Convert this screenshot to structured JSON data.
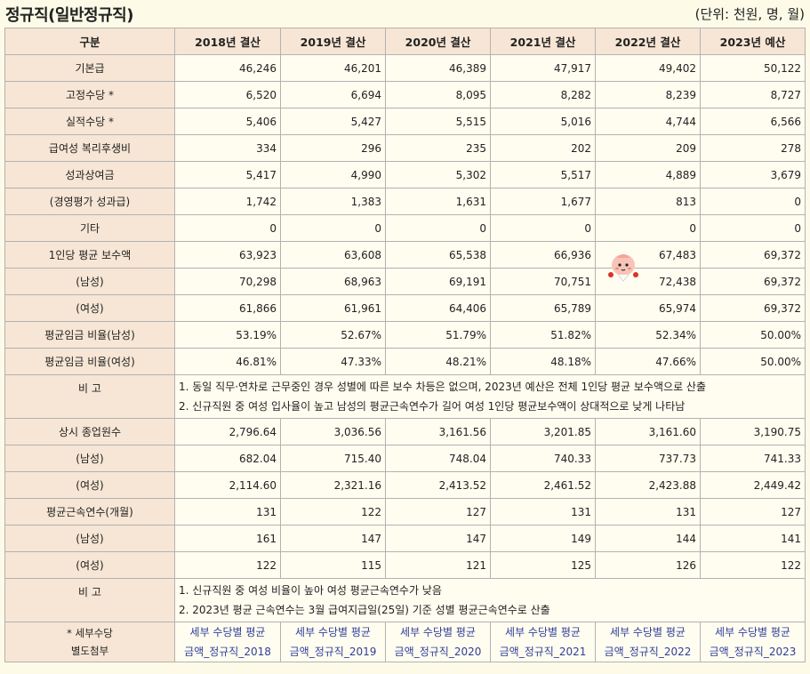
{
  "header": {
    "title": "정규직(일반정규직)",
    "unit": "(단위: 천원, 명, 월)"
  },
  "table": {
    "columns": [
      "구분",
      "2018년 결산",
      "2019년 결산",
      "2020년 결산",
      "2021년 결산",
      "2022년 결산",
      "2023년 예산"
    ],
    "section1": [
      {
        "label": "기본급",
        "values": [
          "46,246",
          "46,201",
          "46,389",
          "47,917",
          "49,402",
          "50,122"
        ]
      },
      {
        "label": "고정수당 *",
        "values": [
          "6,520",
          "6,694",
          "8,095",
          "8,282",
          "8,239",
          "8,727"
        ]
      },
      {
        "label": "실적수당 *",
        "values": [
          "5,406",
          "5,427",
          "5,515",
          "5,016",
          "4,744",
          "6,566"
        ]
      },
      {
        "label": "급여성 복리후생비",
        "values": [
          "334",
          "296",
          "235",
          "202",
          "209",
          "278"
        ]
      },
      {
        "label": "성과상여금",
        "values": [
          "5,417",
          "4,990",
          "5,302",
          "5,517",
          "4,889",
          "3,679"
        ]
      },
      {
        "label": "(경영평가 성과급)",
        "values": [
          "1,742",
          "1,383",
          "1,631",
          "1,677",
          "813",
          "0"
        ]
      },
      {
        "label": "기타",
        "values": [
          "0",
          "0",
          "0",
          "0",
          "0",
          "0"
        ]
      },
      {
        "label": "1인당 평균 보수액",
        "values": [
          "63,923",
          "63,608",
          "65,538",
          "66,936",
          "67,483",
          "69,372"
        ]
      },
      {
        "label": "(남성)",
        "values": [
          "70,298",
          "68,963",
          "69,191",
          "70,751",
          "72,438",
          "69,372"
        ]
      },
      {
        "label": "(여성)",
        "values": [
          "61,866",
          "61,961",
          "64,406",
          "65,789",
          "65,974",
          "69,372"
        ]
      },
      {
        "label": "평균임금 비율(남성)",
        "values": [
          "53.19%",
          "52.67%",
          "51.79%",
          "51.82%",
          "52.34%",
          "50.00%"
        ]
      },
      {
        "label": "평균임금 비율(여성)",
        "values": [
          "46.81%",
          "47.33%",
          "48.21%",
          "48.18%",
          "47.66%",
          "50.00%"
        ]
      }
    ],
    "note1": {
      "label": "비 고",
      "lines": [
        "1. 동일 직무·연차로 근무중인 경우 성별에 따른 보수 차등은 없으며, 2023년 예산은 전체 1인당 평균 보수액으로 산출",
        "2. 신규직원 중 여성 입사율이 높고 남성의 평균근속연수가 길어 여성 1인당 평균보수액이 상대적으로 낮게 나타남"
      ]
    },
    "section2": [
      {
        "label": "상시 종업원수",
        "values": [
          "2,796.64",
          "3,036.56",
          "3,161.56",
          "3,201.85",
          "3,161.60",
          "3,190.75"
        ]
      },
      {
        "label": "(남성)",
        "values": [
          "682.04",
          "715.40",
          "748.04",
          "740.33",
          "737.73",
          "741.33"
        ]
      },
      {
        "label": "(여성)",
        "values": [
          "2,114.60",
          "2,321.16",
          "2,413.52",
          "2,461.52",
          "2,423.88",
          "2,449.42"
        ]
      },
      {
        "label": "평균근속연수(개월)",
        "values": [
          "131",
          "122",
          "127",
          "131",
          "131",
          "127"
        ]
      },
      {
        "label": "(남성)",
        "values": [
          "161",
          "147",
          "147",
          "149",
          "144",
          "141"
        ]
      },
      {
        "label": "(여성)",
        "values": [
          "122",
          "115",
          "121",
          "125",
          "126",
          "122"
        ]
      }
    ],
    "note2": {
      "label": "비 고",
      "lines": [
        "1. 신규직원 중 여성 비율이 높아 여성 평균근속연수가 낮음",
        "2. 2023년 평균 근속연수는 3월 급여지급일(25일) 기준 성별 평균근속연수로 산출"
      ]
    },
    "attachments": {
      "label_line1": "* 세부수당",
      "label_line2": "별도첨부",
      "links": [
        {
          "line1": "세부 수당별 평균",
          "line2": "금액_정규직_2018"
        },
        {
          "line1": "세부 수당별 평균",
          "line2": "금액_정규직_2019"
        },
        {
          "line1": "세부 수당별 평균",
          "line2": "금액_정규직_2020"
        },
        {
          "line1": "세부 수당별 평균",
          "line2": "금액_정규직_2021"
        },
        {
          "line1": "세부 수당별 평균",
          "line2": "금액_정규직_2022"
        },
        {
          "line1": "세부 수당별 평균",
          "line2": "금액_정규직_2023"
        }
      ]
    }
  }
}
